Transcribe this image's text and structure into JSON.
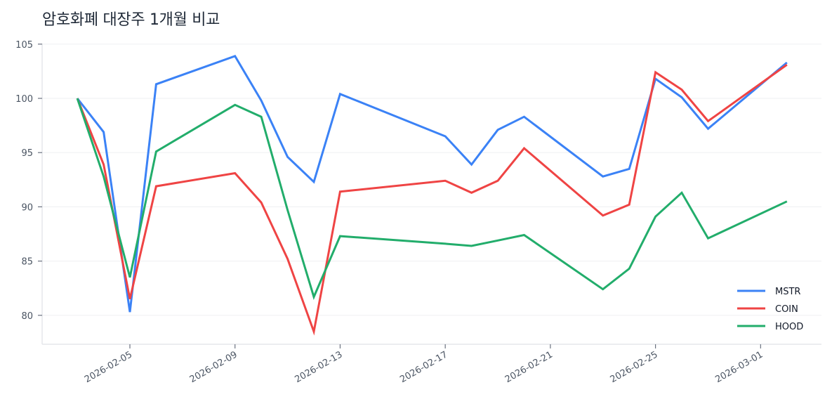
{
  "chart_data": {
    "type": "line",
    "title": "암호화폐 대장주 1개월 비교",
    "xlabel": "",
    "ylabel": "",
    "ylim": [
      77.3,
      105
    ],
    "yticks": [
      80,
      85,
      90,
      95,
      100,
      105
    ],
    "xticks": [
      "2026-02-05",
      "2026-02-09",
      "2026-02-13",
      "2026-02-17",
      "2026-02-21",
      "2026-02-25",
      "2026-03-01"
    ],
    "grid": true,
    "legend_position": "lower right",
    "x": [
      "2026-02-03",
      "2026-02-04",
      "2026-02-05",
      "2026-02-06",
      "2026-02-09",
      "2026-02-10",
      "2026-02-11",
      "2026-02-12",
      "2026-02-13",
      "2026-02-17",
      "2026-02-18",
      "2026-02-19",
      "2026-02-20",
      "2026-02-23",
      "2026-02-24",
      "2026-02-25",
      "2026-02-26",
      "2026-02-27",
      "2026-03-02"
    ],
    "series": [
      {
        "name": "MSTR",
        "color": "#3b82f6",
        "values": [
          100.0,
          96.9,
          80.3,
          101.3,
          103.9,
          99.8,
          94.6,
          92.3,
          100.4,
          96.5,
          93.9,
          97.1,
          98.3,
          92.8,
          93.5,
          101.8,
          100.1,
          97.2,
          103.3
        ]
      },
      {
        "name": "COIN",
        "color": "#ef4444",
        "values": [
          100.0,
          93.9,
          81.5,
          91.9,
          93.1,
          90.4,
          85.2,
          78.5,
          91.4,
          92.4,
          91.3,
          92.4,
          95.4,
          89.2,
          90.2,
          102.4,
          100.8,
          97.9,
          103.1
        ]
      },
      {
        "name": "HOOD",
        "color": "#22ad6b",
        "values": [
          100.0,
          92.8,
          83.5,
          95.1,
          99.4,
          98.3,
          89.7,
          81.7,
          87.3,
          86.6,
          86.4,
          86.9,
          87.4,
          82.4,
          84.3,
          89.1,
          91.3,
          87.1,
          90.5
        ]
      }
    ]
  }
}
